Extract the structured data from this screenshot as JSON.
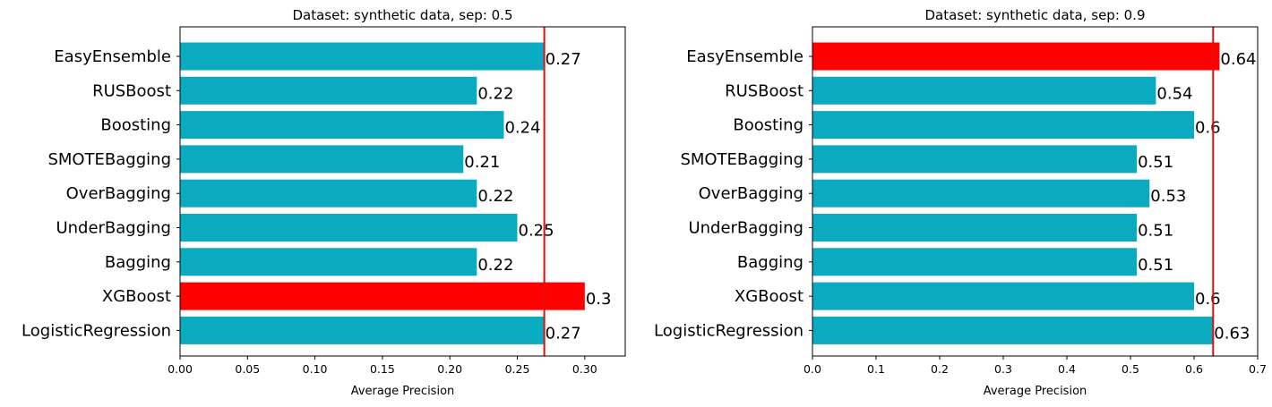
{
  "chart_data": [
    {
      "type": "bar",
      "orientation": "horizontal",
      "title": "Dataset: synthetic data, sep: 0.5",
      "xlabel": "Average Precision",
      "ylabel": "",
      "categories": [
        "EasyEnsemble",
        "RUSBoost",
        "Boosting",
        "SMOTEBagging",
        "OverBagging",
        "UnderBagging",
        "Bagging",
        "XGBoost",
        "LogisticRegression"
      ],
      "values": [
        0.27,
        0.22,
        0.24,
        0.21,
        0.22,
        0.25,
        0.22,
        0.3,
        0.27
      ],
      "value_labels": [
        "0.27",
        "0.22",
        "0.24",
        "0.21",
        "0.22",
        "0.25",
        "0.22",
        "0.3",
        "0.27"
      ],
      "highlight_index": 7,
      "reference_line": 0.27,
      "xlim": [
        0,
        0.33
      ],
      "xticks": [
        0,
        0.05,
        0.1,
        0.15,
        0.2,
        0.25,
        0.3
      ],
      "xtick_labels": [
        "0.00",
        "0.05",
        "0.10",
        "0.15",
        "0.20",
        "0.25",
        "0.30"
      ],
      "grid": false
    },
    {
      "type": "bar",
      "orientation": "horizontal",
      "title": "Dataset: synthetic data, sep: 0.9",
      "xlabel": "Average Precision",
      "ylabel": "",
      "categories": [
        "EasyEnsemble",
        "RUSBoost",
        "Boosting",
        "SMOTEBagging",
        "OverBagging",
        "UnderBagging",
        "Bagging",
        "XGBoost",
        "LogisticRegression"
      ],
      "values": [
        0.64,
        0.54,
        0.6,
        0.51,
        0.53,
        0.51,
        0.51,
        0.6,
        0.63
      ],
      "value_labels": [
        "0.64",
        "0.54",
        "0.6",
        "0.51",
        "0.53",
        "0.51",
        "0.51",
        "0.6",
        "0.63"
      ],
      "highlight_index": 0,
      "reference_line": 0.63,
      "xlim": [
        0,
        0.7
      ],
      "xticks": [
        0,
        0.1,
        0.2,
        0.3,
        0.4,
        0.5,
        0.6,
        0.7
      ],
      "xtick_labels": [
        "0.0",
        "0.1",
        "0.2",
        "0.3",
        "0.4",
        "0.5",
        "0.6",
        "0.7"
      ],
      "grid": false
    }
  ],
  "colors": {
    "bar": "#0aabc1",
    "highlight": "#ff0000",
    "reference_line": "#e01010",
    "axis": "#000000"
  }
}
